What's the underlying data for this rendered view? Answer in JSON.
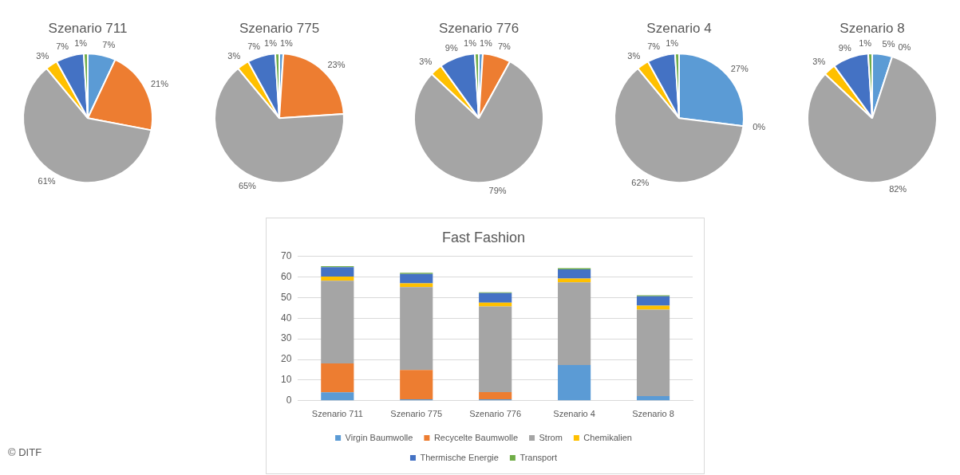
{
  "chart_data": [
    {
      "type": "pie",
      "title": "Szenario 711",
      "categories": [
        null,
        null,
        null,
        null,
        null,
        null
      ],
      "values": [
        7,
        21,
        61,
        3,
        7,
        1
      ],
      "value_labels": [
        "7%",
        "21%",
        "61%",
        "3%",
        "7%",
        "1%"
      ],
      "colors": [
        "#5b9bd5",
        "#ed7d31",
        "#a5a5a5",
        "#ffc000",
        "#4472c4",
        "#70ad47"
      ]
    },
    {
      "type": "pie",
      "title": "Szenario 775",
      "categories": [
        null,
        null,
        null,
        null,
        null,
        null
      ],
      "values": [
        1,
        23,
        65,
        3,
        7,
        1
      ],
      "value_labels": [
        "1%",
        "23%",
        "65%",
        "3%",
        "7%",
        "1%"
      ],
      "colors": [
        "#5b9bd5",
        "#ed7d31",
        "#a5a5a5",
        "#ffc000",
        "#4472c4",
        "#70ad47"
      ]
    },
    {
      "type": "pie",
      "title": "Szenario 776",
      "categories": [
        null,
        null,
        null,
        null,
        null,
        null
      ],
      "values": [
        1,
        7,
        79,
        3,
        9,
        1
      ],
      "value_labels": [
        "1%",
        "7%",
        "79%",
        "3%",
        "9%",
        "1%"
      ],
      "colors": [
        "#5b9bd5",
        "#ed7d31",
        "#a5a5a5",
        "#ffc000",
        "#4472c4",
        "#70ad47"
      ]
    },
    {
      "type": "pie",
      "title": "Szenario 4",
      "categories": [
        null,
        null,
        null,
        null,
        null,
        null
      ],
      "values": [
        27,
        0,
        62,
        3,
        7,
        1
      ],
      "value_labels": [
        "27%",
        "0%",
        "62%",
        "3%",
        "7%",
        "1%"
      ],
      "colors": [
        "#5b9bd5",
        "#ed7d31",
        "#a5a5a5",
        "#ffc000",
        "#4472c4",
        "#70ad47"
      ]
    },
    {
      "type": "pie",
      "title": "Szenario 8",
      "categories": [
        null,
        null,
        null,
        null,
        null,
        null
      ],
      "values": [
        5,
        0,
        82,
        3,
        9,
        1
      ],
      "value_labels": [
        "5%",
        "0%",
        "82%",
        "3%",
        "9%",
        "1%"
      ],
      "colors": [
        "#5b9bd5",
        "#ed7d31",
        "#a5a5a5",
        "#ffc000",
        "#4472c4",
        "#70ad47"
      ]
    },
    {
      "type": "bar",
      "title": "Fast Fashion",
      "categories": [
        "Szenario 711",
        "Szenario 775",
        "Szenario 776",
        "Szenario 4",
        "Szenario 8"
      ],
      "stacked": true,
      "series": [
        {
          "name": "Virgin Baumwolle",
          "color": "#5b9bd5",
          "values": [
            4.1,
            0.7,
            0.7,
            17.3,
            2.2
          ]
        },
        {
          "name": "Recycelte Baumwolle",
          "color": "#ed7d31",
          "values": [
            14,
            14.2,
            3.5,
            0,
            0
          ]
        },
        {
          "name": "Strom",
          "color": "#a5a5a5",
          "values": [
            40.1,
            40.2,
            41.5,
            40.1,
            42
          ]
        },
        {
          "name": "Chemikalien",
          "color": "#ffc000",
          "values": [
            2,
            1.8,
            1.8,
            1.8,
            1.9
          ]
        },
        {
          "name": "Thermische Energie",
          "color": "#4472c4",
          "values": [
            4.5,
            4.5,
            4.7,
            4.5,
            4.5
          ]
        },
        {
          "name": "Transport",
          "color": "#70ad47",
          "values": [
            0.5,
            0.6,
            0.4,
            0.5,
            0.5
          ]
        }
      ],
      "ylim": [
        0,
        70
      ],
      "yticks": [
        0,
        10,
        20,
        30,
        40,
        50,
        60,
        70
      ],
      "grid": "y",
      "legend": "bottom",
      "annotations": [
        "© DITF"
      ]
    }
  ]
}
